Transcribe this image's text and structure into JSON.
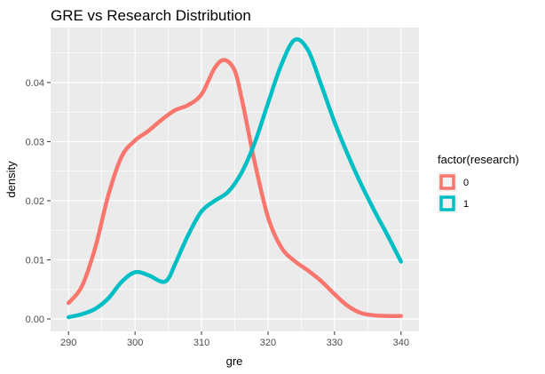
{
  "chart_data": {
    "type": "line",
    "subtype": "density",
    "title": "GRE vs Research Distribution",
    "xlabel": "gre",
    "ylabel": "density",
    "xlim": [
      287.3,
      342.7
    ],
    "ylim": [
      -0.0021,
      0.0493
    ],
    "x_ticks": [
      290,
      300,
      310,
      320,
      330,
      340
    ],
    "x_tick_labels": [
      "290",
      "300",
      "310",
      "320",
      "330",
      "340"
    ],
    "y_ticks": [
      0,
      0.01,
      0.02,
      0.03,
      0.04
    ],
    "y_tick_labels": [
      "0.00",
      "0.01",
      "0.02",
      "0.03",
      "0.04"
    ],
    "grid": true,
    "background": "#ebebeb",
    "legend": {
      "title": "factor(research)",
      "position": "right"
    },
    "series": [
      {
        "name": "0",
        "color": "#f8766d",
        "points": [
          [
            290,
            0.0027
          ],
          [
            292,
            0.0055
          ],
          [
            294,
            0.012
          ],
          [
            296,
            0.021
          ],
          [
            298,
            0.0275
          ],
          [
            300,
            0.0302
          ],
          [
            302,
            0.0318
          ],
          [
            304,
            0.0337
          ],
          [
            306,
            0.0353
          ],
          [
            308,
            0.0362
          ],
          [
            310,
            0.038
          ],
          [
            312,
            0.0425
          ],
          [
            313.5,
            0.0438
          ],
          [
            315,
            0.042
          ],
          [
            316,
            0.0375
          ],
          [
            317,
            0.032
          ],
          [
            318,
            0.0265
          ],
          [
            320,
            0.0172
          ],
          [
            322,
            0.0121
          ],
          [
            324,
            0.0098
          ],
          [
            326,
            0.0082
          ],
          [
            328,
            0.0064
          ],
          [
            330,
            0.0042
          ],
          [
            332,
            0.0022
          ],
          [
            334,
            0.001
          ],
          [
            336,
            0.0006
          ],
          [
            338,
            0.0005
          ],
          [
            340,
            0.0005
          ]
        ]
      },
      {
        "name": "1",
        "color": "#00bfc4",
        "points": [
          [
            290,
            0.0003
          ],
          [
            292,
            0.0008
          ],
          [
            294,
            0.0017
          ],
          [
            296,
            0.0035
          ],
          [
            298,
            0.0063
          ],
          [
            300,
            0.0079
          ],
          [
            302,
            0.0074
          ],
          [
            304,
            0.0063
          ],
          [
            305,
            0.0068
          ],
          [
            306,
            0.0092
          ],
          [
            308,
            0.0142
          ],
          [
            310,
            0.0182
          ],
          [
            312,
            0.02
          ],
          [
            314,
            0.0215
          ],
          [
            316,
            0.0247
          ],
          [
            318,
            0.0298
          ],
          [
            320,
            0.0365
          ],
          [
            322,
            0.043
          ],
          [
            324,
            0.0472
          ],
          [
            326,
            0.0455
          ],
          [
            328,
            0.0396
          ],
          [
            330,
            0.0333
          ],
          [
            332,
            0.0278
          ],
          [
            334,
            0.0228
          ],
          [
            336,
            0.0183
          ],
          [
            338,
            0.0141
          ],
          [
            340,
            0.0097
          ]
        ]
      }
    ]
  }
}
